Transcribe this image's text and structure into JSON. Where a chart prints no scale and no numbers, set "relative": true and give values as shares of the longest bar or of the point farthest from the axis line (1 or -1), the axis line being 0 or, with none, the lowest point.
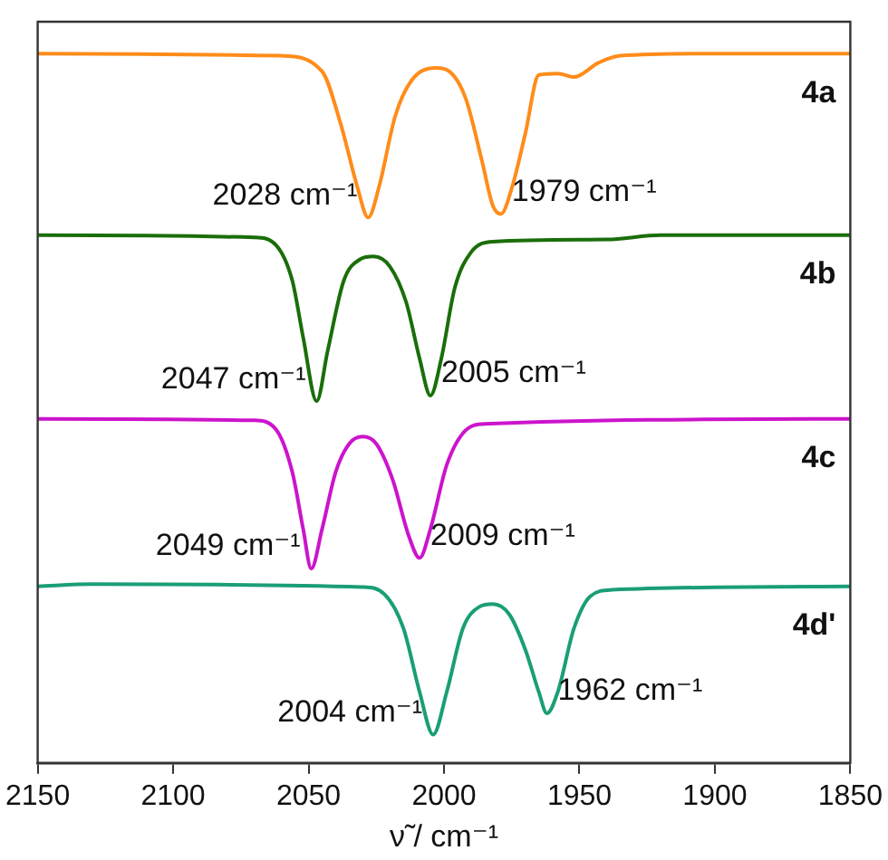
{
  "chart_data": {
    "type": "line",
    "relative": true,
    "xlabel": "ν̃ / cm⁻¹",
    "xlim": [
      2150,
      1850
    ],
    "xticks": [
      2150,
      2100,
      2050,
      2000,
      1950,
      1900,
      1850
    ],
    "legend": false,
    "grid": false,
    "series": [
      {
        "name": "4a",
        "color": "#ff8c1a",
        "x": [
          2150,
          2060,
          2045,
          2038,
          2032,
          2028,
          2024,
          2018,
          2012,
          2003,
          1998,
          1992,
          1986,
          1982,
          1979,
          1975,
          1970,
          1965,
          1958,
          1952,
          1943,
          1935,
          1900,
          1850
        ],
        "values": [
          1.0,
          0.997,
          0.975,
          0.899,
          0.812,
          0.769,
          0.812,
          0.912,
          0.962,
          0.98,
          0.975,
          0.937,
          0.849,
          0.786,
          0.774,
          0.81,
          0.887,
          0.97,
          0.972,
          0.967,
          0.987,
          0.997,
          1.0,
          1.0
        ]
      },
      {
        "name": "4b",
        "color": "#1a6e0a",
        "x": [
          2150,
          2070,
          2062,
          2056,
          2052,
          2047,
          2043,
          2037,
          2031,
          2026,
          2020,
          2014,
          2009,
          2005,
          2001,
          1996,
          1990,
          1982,
          1940,
          1920,
          1850
        ],
        "values": [
          0.744,
          0.741,
          0.73,
          0.68,
          0.6,
          0.51,
          0.58,
          0.68,
          0.71,
          0.714,
          0.7,
          0.65,
          0.57,
          0.518,
          0.57,
          0.67,
          0.72,
          0.735,
          0.738,
          0.744,
          0.744
        ]
      },
      {
        "name": "4c",
        "color": "#cc14cc",
        "x": [
          2150,
          2070,
          2062,
          2056,
          2052,
          2049,
          2045,
          2040,
          2035,
          2030,
          2025,
          2019,
          2013,
          2009,
          2005,
          1999,
          1993,
          1985,
          1850
        ],
        "values": [
          0.485,
          0.483,
          0.47,
          0.41,
          0.33,
          0.274,
          0.33,
          0.41,
          0.45,
          0.46,
          0.45,
          0.4,
          0.32,
          0.289,
          0.33,
          0.42,
          0.465,
          0.478,
          0.485
        ]
      },
      {
        "name": "4d'",
        "color": "#1a9e77",
        "x": [
          2150,
          2130,
          2030,
          2022,
          2015,
          2009,
          2004,
          1999,
          1993,
          1987,
          1982,
          1976,
          1970,
          1965,
          1962,
          1958,
          1952,
          1946,
          1938,
          1850
        ],
        "values": [
          0.249,
          0.252,
          0.248,
          0.238,
          0.19,
          0.1,
          0.04,
          0.1,
          0.19,
          0.22,
          0.224,
          0.21,
          0.16,
          0.1,
          0.07,
          0.1,
          0.19,
          0.235,
          0.244,
          0.249
        ]
      }
    ],
    "annotations": [
      {
        "text": "2028 cm⁻¹",
        "x": 2028,
        "y": 0.769
      },
      {
        "text": "1979 cm⁻¹",
        "x": 1979,
        "y": 0.774
      },
      {
        "text": "2047 cm⁻¹",
        "x": 2047,
        "y": 0.51
      },
      {
        "text": "2005 cm⁻¹",
        "x": 2005,
        "y": 0.518
      },
      {
        "text": "2049 cm⁻¹",
        "x": 2049,
        "y": 0.274
      },
      {
        "text": "2009 cm⁻¹",
        "x": 2009,
        "y": 0.289
      },
      {
        "text": "2004 cm⁻¹",
        "x": 2004,
        "y": 0.04
      },
      {
        "text": "1962 cm⁻¹",
        "x": 1962,
        "y": 0.07
      }
    ]
  }
}
